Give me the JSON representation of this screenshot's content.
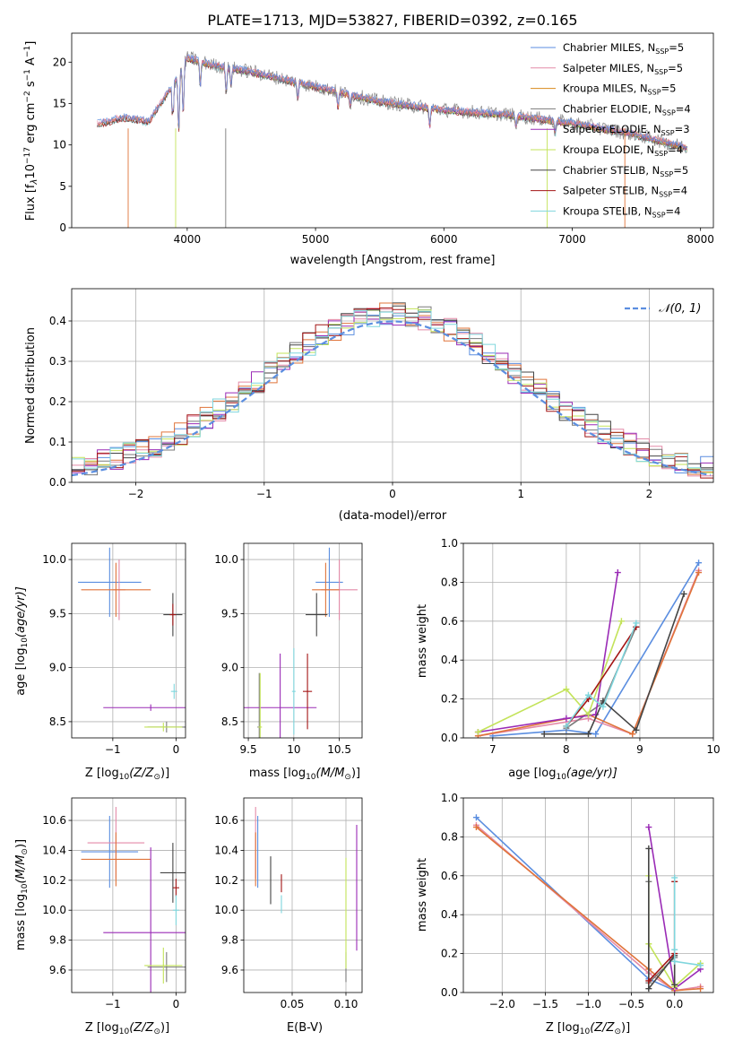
{
  "figure_title": "PLATE=1713, MJD=53827, FIBERID=0392, z=0.165",
  "colors": {
    "Chabrier MILES": "#5b8ee0",
    "Salpeter MILES": "#e48aa8",
    "Kroupa MILES": "#d88a1c",
    "Chabrier ELODIE": "#7a7a7a",
    "Salpeter ELODIE": "#9a2bb6",
    "Kroupa ELODIE": "#c3e35a",
    "Chabrier STELIB": "#444444",
    "Salpeter STELIB": "#a31515",
    "Kroupa STELIB": "#7fd6dd",
    "orange": "#e0743a",
    "normal": "#5b8ee0"
  },
  "chart_data": [
    {
      "id": "spectrum",
      "type": "line",
      "xlabel": "wavelength [Angstrom, rest frame]",
      "xlim": [
        3100,
        8100
      ],
      "ylim": [
        0,
        23.5
      ],
      "xticks": [
        4000,
        5000,
        6000,
        7000,
        8000
      ],
      "yticks": [
        0,
        5,
        10,
        15,
        20
      ],
      "grid": false,
      "legend_position": "top-right",
      "series": [
        {
          "name": "Chabrier MILES",
          "legend": "Chabrier MILES, N",
          "nssp": "=5"
        },
        {
          "name": "Salpeter MILES",
          "legend": "Salpeter MILES, N",
          "nssp": "=5"
        },
        {
          "name": "Kroupa MILES",
          "legend": "Kroupa MILES, N",
          "nssp": "=5"
        },
        {
          "name": "Chabrier ELODIE",
          "legend": "Chabrier ELODIE, N",
          "nssp": "=4"
        },
        {
          "name": "Salpeter ELODIE",
          "legend": "Salpeter ELODIE, N",
          "nssp": "=3"
        },
        {
          "name": "Kroupa ELODIE",
          "legend": "Kroupa ELODIE, N",
          "nssp": "=4"
        },
        {
          "name": "Chabrier STELIB",
          "legend": "Chabrier STELIB, N",
          "nssp": "=5"
        },
        {
          "name": "Salpeter STELIB",
          "legend": "Salpeter STELIB, N",
          "nssp": "=4"
        },
        {
          "name": "Kroupa STELIB",
          "legend": "Kroupa STELIB, N",
          "nssp": "=4"
        }
      ],
      "continuum": {
        "x": [
          3300,
          3500,
          3700,
          3900,
          4000,
          4200,
          4500,
          5000,
          5500,
          6000,
          6500,
          7000,
          7500,
          7900
        ],
        "y": [
          12.5,
          13.3,
          12.8,
          17.5,
          20.5,
          19.6,
          18.8,
          17.0,
          15.2,
          14.2,
          13.6,
          12.6,
          11.2,
          9.6
        ]
      }
    },
    {
      "id": "residuals",
      "type": "line",
      "xlabel": "(data-model)/error",
      "ylabel": "Normed distribution",
      "xlim": [
        -2.5,
        2.5
      ],
      "ylim": [
        0,
        0.48
      ],
      "xticks": [
        -2,
        -1,
        0,
        1,
        2
      ],
      "yticks": [
        0.0,
        0.1,
        0.2,
        0.3,
        0.4
      ],
      "grid": true,
      "legend_position": "top-right",
      "legend": "𝒩(0, 1)",
      "normal": {
        "mean": 0,
        "std": 1
      }
    },
    {
      "id": "age_vs_Z",
      "type": "scatter",
      "xlabel_pre": "Z [log",
      "xlabel_post": "(Z/Z",
      "ylabel_pre": "age  [log",
      "ylabel_post": "(age/yr)]",
      "xlim": [
        -1.65,
        0.15
      ],
      "ylim": [
        8.35,
        10.15
      ],
      "xticks": [
        -1,
        0
      ],
      "yticks": [
        8.5,
        9.0,
        9.5,
        10.0
      ],
      "grid": true,
      "points": [
        {
          "series": "Chabrier MILES",
          "x": -1.05,
          "y": 9.79,
          "xerr": 0.5,
          "yerr": 0.32
        },
        {
          "series": "Salpeter MILES",
          "x": -0.9,
          "y": 9.72,
          "xerr": 0.1,
          "yerr": 0.28
        },
        {
          "series": "Kroupa MILES",
          "x": -0.95,
          "y": 9.72,
          "xerr": 0.55,
          "yerr": 0.25
        },
        {
          "series": "Chabrier ELODIE",
          "x": -0.15,
          "y": 8.45,
          "xerr": 0.3,
          "yerr": 0.05
        },
        {
          "series": "Salpeter ELODIE",
          "x": -0.4,
          "y": 8.63,
          "xerr": 0.75,
          "yerr": 0.03
        },
        {
          "series": "Kroupa ELODIE",
          "x": -0.2,
          "y": 8.45,
          "xerr": 0.3,
          "yerr": 0.04
        },
        {
          "series": "Chabrier STELIB",
          "x": -0.05,
          "y": 9.49,
          "xerr": 0.15,
          "yerr": 0.2
        },
        {
          "series": "Salpeter STELIB",
          "x": -0.05,
          "y": 9.49,
          "xerr": 0.05,
          "yerr": 0.1
        },
        {
          "series": "Kroupa STELIB",
          "x": -0.03,
          "y": 8.78,
          "xerr": 0.05,
          "yerr": 0.07
        }
      ]
    },
    {
      "id": "age_vs_mass",
      "type": "scatter",
      "xlabel_pre": "mass [log",
      "xlabel_post": "(M/M",
      "xlim": [
        9.45,
        10.75
      ],
      "ylim": [
        8.35,
        10.15
      ],
      "xticks": [
        9.5,
        10.0,
        10.5
      ],
      "yticks": [
        8.5,
        9.0,
        9.5,
        10.0
      ],
      "grid": true,
      "points": [
        {
          "series": "Chabrier MILES",
          "x": 10.39,
          "y": 9.79,
          "xerr": 0.15,
          "yerr": 0.32
        },
        {
          "series": "Salpeter MILES",
          "x": 10.5,
          "y": 9.72,
          "xerr": 0.2,
          "yerr": 0.28
        },
        {
          "series": "Kroupa MILES",
          "x": 10.35,
          "y": 9.72,
          "xerr": 0.15,
          "yerr": 0.25
        },
        {
          "series": "Chabrier ELODIE",
          "x": 9.62,
          "y": 8.45,
          "xerr": 0.02,
          "yerr": 0.5
        },
        {
          "series": "Salpeter ELODIE",
          "x": 9.85,
          "y": 8.63,
          "xerr": 0.4,
          "yerr": 0.5
        },
        {
          "series": "Kroupa ELODIE",
          "x": 9.63,
          "y": 8.45,
          "xerr": 0.02,
          "yerr": 0.5
        },
        {
          "series": "Chabrier STELIB",
          "x": 10.25,
          "y": 9.49,
          "xerr": 0.12,
          "yerr": 0.2
        },
        {
          "series": "Salpeter STELIB",
          "x": 10.15,
          "y": 8.78,
          "xerr": 0.05,
          "yerr": 0.35
        },
        {
          "series": "Kroupa STELIB",
          "x": 10.0,
          "y": 8.78,
          "xerr": 0.02,
          "yerr": 0.4
        }
      ]
    },
    {
      "id": "massweight_vs_age",
      "type": "line",
      "xlabel_pre": "age  [log",
      "xlabel_post": "(age/yr)]",
      "ylabel": "mass weight",
      "xlim": [
        6.6,
        10.0
      ],
      "ylim": [
        0,
        1.0
      ],
      "xticks": [
        7,
        8,
        9,
        10
      ],
      "yticks": [
        0.0,
        0.2,
        0.4,
        0.6,
        0.8,
        1.0
      ],
      "grid": true,
      "series": [
        {
          "name": "Chabrier MILES",
          "x": [
            7.0,
            8.0,
            8.4,
            9.8
          ],
          "y": [
            0.01,
            0.04,
            0.02,
            0.9
          ]
        },
        {
          "name": "Salpeter MILES",
          "x": [
            6.8,
            8.3,
            8.9,
            9.8
          ],
          "y": [
            0.01,
            0.1,
            0.02,
            0.86
          ]
        },
        {
          "name": "Kroupa MILES",
          "x": [
            6.8,
            8.3,
            8.9,
            9.8
          ],
          "y": [
            0.01,
            0.12,
            0.02,
            0.85
          ]
        },
        {
          "name": "Chabrier ELODIE",
          "x": [
            8.0,
            8.5,
            8.95
          ],
          "y": [
            0.05,
            0.18,
            0.57
          ]
        },
        {
          "name": "Salpeter ELODIE",
          "x": [
            6.8,
            8.0,
            8.4,
            8.7
          ],
          "y": [
            0.03,
            0.1,
            0.12,
            0.85
          ]
        },
        {
          "name": "Kroupa ELODIE",
          "x": [
            6.8,
            8.0,
            8.3,
            8.75
          ],
          "y": [
            0.03,
            0.25,
            0.12,
            0.6
          ]
        },
        {
          "name": "Chabrier STELIB",
          "x": [
            7.7,
            8.3,
            8.5,
            8.95,
            9.6
          ],
          "y": [
            0.02,
            0.02,
            0.19,
            0.04,
            0.74
          ]
        },
        {
          "name": "Salpeter STELIB",
          "x": [
            8.0,
            8.3,
            8.95
          ],
          "y": [
            0.06,
            0.2,
            0.57
          ]
        },
        {
          "name": "Kroupa STELIB",
          "x": [
            8.0,
            8.3,
            8.5,
            8.95
          ],
          "y": [
            0.06,
            0.22,
            0.16,
            0.59
          ]
        }
      ]
    },
    {
      "id": "mass_vs_Z",
      "type": "scatter",
      "xlabel_pre": "Z [log",
      "xlabel_post": "(Z/Z",
      "ylabel_pre": "mass [log",
      "ylabel_post": "(M/M",
      "xlim": [
        -1.65,
        0.15
      ],
      "ylim": [
        9.45,
        10.75
      ],
      "xticks": [
        -1,
        0
      ],
      "yticks": [
        9.6,
        9.8,
        10.0,
        10.2,
        10.4,
        10.6
      ],
      "grid": true,
      "points": [
        {
          "series": "Chabrier MILES",
          "x": -1.05,
          "y": 10.39,
          "xerr": 0.45,
          "yerr": 0.24
        },
        {
          "series": "Salpeter MILES",
          "x": -0.95,
          "y": 10.45,
          "xerr": 0.45,
          "yerr": 0.24
        },
        {
          "series": "Kroupa MILES",
          "x": -0.95,
          "y": 10.34,
          "xerr": 0.55,
          "yerr": 0.18
        },
        {
          "series": "Chabrier ELODIE",
          "x": -0.15,
          "y": 9.62,
          "xerr": 0.3,
          "yerr": 0.1
        },
        {
          "series": "Salpeter ELODIE",
          "x": -0.4,
          "y": 9.85,
          "xerr": 0.75,
          "yerr": 0.57
        },
        {
          "series": "Kroupa ELODIE",
          "x": -0.2,
          "y": 9.63,
          "xerr": 0.3,
          "yerr": 0.12
        },
        {
          "series": "Chabrier STELIB",
          "x": -0.05,
          "y": 10.25,
          "xerr": 0.2,
          "yerr": 0.2
        },
        {
          "series": "Salpeter STELIB",
          "x": 0.0,
          "y": 10.15,
          "xerr": 0.05,
          "yerr": 0.06
        },
        {
          "series": "Kroupa STELIB",
          "x": 0.0,
          "y": 10.0,
          "xerr": 0.05,
          "yerr": 0.1
        }
      ]
    },
    {
      "id": "mass_vs_EBV",
      "type": "scatter",
      "xlabel": "E(B-V)",
      "xlim": [
        0.005,
        0.115
      ],
      "ylim": [
        9.45,
        10.75
      ],
      "xticks": [
        0.05,
        0.1
      ],
      "xtick_labels": [
        "0.05",
        "0.10"
      ],
      "yticks": [
        9.6,
        9.8,
        10.0,
        10.2,
        10.4,
        10.6
      ],
      "grid": true,
      "points": [
        {
          "series": "Chabrier MILES",
          "x": 0.018,
          "y": 10.39,
          "xerr": 0,
          "yerr": 0.24
        },
        {
          "series": "Salpeter MILES",
          "x": 0.016,
          "y": 10.45,
          "xerr": 0,
          "yerr": 0.24
        },
        {
          "series": "Kroupa MILES",
          "x": 0.016,
          "y": 10.34,
          "xerr": 0,
          "yerr": 0.18
        },
        {
          "series": "Chabrier ELODIE",
          "x": 0.1,
          "y": 9.62,
          "xerr": 0,
          "yerr": 0.1
        },
        {
          "series": "Salpeter ELODIE",
          "x": 0.11,
          "y": 10.15,
          "xerr": 0,
          "yerr": 0.42
        },
        {
          "series": "Kroupa ELODIE",
          "x": 0.1,
          "y": 9.98,
          "xerr": 0,
          "yerr": 0.37
        },
        {
          "series": "Chabrier STELIB",
          "x": 0.03,
          "y": 10.2,
          "xerr": 0,
          "yerr": 0.16
        },
        {
          "series": "Salpeter STELIB",
          "x": 0.04,
          "y": 10.18,
          "xerr": 0,
          "yerr": 0.06
        },
        {
          "series": "Kroupa STELIB",
          "x": 0.04,
          "y": 10.04,
          "xerr": 0,
          "yerr": 0.06
        }
      ]
    },
    {
      "id": "massweight_vs_Z",
      "type": "line",
      "xlabel_pre": "Z [log",
      "xlabel_post": "(Z/Z",
      "ylabel": "mass weight",
      "xlim": [
        -2.45,
        0.45
      ],
      "ylim": [
        0,
        1.0
      ],
      "xticks": [
        -2.0,
        -1.5,
        -1.0,
        -0.5,
        0.0
      ],
      "xtick_labels": [
        "−2.0",
        "−1.5",
        "−1.0",
        "−0.5",
        "0.0"
      ],
      "yticks": [
        0.0,
        0.2,
        0.4,
        0.6,
        0.8,
        1.0
      ],
      "grid": true,
      "series": [
        {
          "name": "Chabrier MILES",
          "x": [
            -2.3,
            -0.3,
            0.0
          ],
          "y": [
            0.9,
            0.07,
            0.01
          ]
        },
        {
          "name": "Salpeter MILES",
          "x": [
            -2.3,
            -0.3,
            0.0,
            0.3
          ],
          "y": [
            0.86,
            0.1,
            0.01,
            0.03
          ]
        },
        {
          "name": "Kroupa MILES",
          "x": [
            -2.3,
            -0.3,
            0.0,
            0.3
          ],
          "y": [
            0.85,
            0.12,
            0.01,
            0.02
          ]
        },
        {
          "name": "Chabrier ELODIE",
          "x": [
            -0.3,
            -0.3,
            0.0
          ],
          "y": [
            0.57,
            0.05,
            0.18
          ]
        },
        {
          "name": "Salpeter ELODIE",
          "x": [
            -0.3,
            0.0,
            0.3
          ],
          "y": [
            0.85,
            0.02,
            0.12
          ]
        },
        {
          "name": "Kroupa ELODIE",
          "x": [
            -0.3,
            -0.3,
            0.0,
            0.3
          ],
          "y": [
            0.6,
            0.25,
            0.03,
            0.15
          ]
        },
        {
          "name": "Chabrier STELIB",
          "x": [
            -0.3,
            -0.3,
            0.0,
            0.0
          ],
          "y": [
            0.74,
            0.02,
            0.19,
            0.04
          ]
        },
        {
          "name": "Salpeter STELIB",
          "x": [
            -0.3,
            0.0,
            0.0
          ],
          "y": [
            0.06,
            0.2,
            0.57
          ]
        },
        {
          "name": "Kroupa STELIB",
          "x": [
            0.0,
            0.0,
            0.0,
            0.3
          ],
          "y": [
            0.59,
            0.22,
            0.16,
            0.14
          ]
        }
      ]
    }
  ],
  "panel_texts": {
    "spec_ylabel": "Flux [f",
    "spec_ylabel_mid": "10",
    "spec_ylabel_exp": "−17",
    "spec_ylabel_units": " erg cm",
    "spec_ylabel_exp2": "−2",
    "spec_ylabel_s": " s",
    "spec_ylabel_exp3": "−1",
    "spec_ylabel_A": " A",
    "spec_ylabel_exp4": "−1",
    "spec_ylabel_end": "]",
    "lambda": "λ",
    "nssp_sub": "SSP",
    "sub10": "10",
    "sun": "⊙",
    "close": ")]"
  }
}
